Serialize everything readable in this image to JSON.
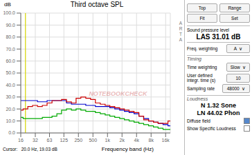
{
  "chart_data": {
    "type": "line",
    "title": "Third octave SPL",
    "x_label": "Frequency band (Hz)",
    "y_label": "dB",
    "log": "x",
    "line_style": "step",
    "grid": true,
    "xlim": [
      16,
      20000
    ],
    "ylim": [
      0.0,
      100.0
    ],
    "xticks": [
      16,
      32,
      63,
      125,
      250,
      500,
      {
        "value": 1000,
        "label": "1k"
      },
      {
        "value": 2000,
        "label": "2k"
      },
      {
        "value": 4000,
        "label": "4k"
      },
      {
        "value": 8000,
        "label": "8k"
      },
      {
        "value": 16000,
        "label": "16k"
      }
    ],
    "yticks": [
      {
        "value": 0,
        "label": "0.0"
      },
      {
        "value": 10,
        "label": "10.0"
      },
      {
        "value": 20,
        "label": "20.0"
      },
      {
        "value": 30,
        "label": "30.0"
      },
      {
        "value": 40,
        "label": "40.0"
      },
      {
        "value": 50,
        "label": "50.0"
      },
      {
        "value": 60,
        "label": "60.0"
      },
      {
        "value": 70,
        "label": "70.0"
      },
      {
        "value": 80,
        "label": "80.0"
      },
      {
        "value": 90,
        "label": "90.0"
      },
      {
        "value": 100,
        "label": "100.0"
      }
    ],
    "x": [
      16,
      20,
      25,
      31.5,
      40,
      50,
      63,
      80,
      100,
      125,
      160,
      200,
      250,
      315,
      400,
      500,
      630,
      800,
      1000,
      1250,
      1600,
      2000,
      2500,
      3150,
      4000,
      5000,
      6300,
      8000,
      10000,
      12500,
      16000,
      20000
    ],
    "series": [
      {
        "color": "#00aa00",
        "values": [
          13,
          12,
          12,
          12,
          12,
          13,
          13,
          14,
          16,
          19,
          20,
          19,
          20,
          19,
          18,
          18,
          17,
          16,
          15,
          14,
          13,
          12,
          11,
          10,
          9,
          8,
          7,
          6,
          5,
          4,
          3,
          3
        ]
      },
      {
        "color": "#0000cc",
        "values": [
          27,
          27,
          27,
          27,
          26,
          26,
          27,
          27,
          27,
          27,
          25,
          24,
          24,
          24,
          23,
          23,
          22,
          22,
          22,
          21,
          20,
          19,
          18,
          17,
          16,
          14,
          12,
          10,
          9,
          8,
          7,
          6
        ]
      },
      {
        "color": "#cc0000",
        "values": [
          19,
          20,
          22,
          23,
          22,
          23,
          25,
          27,
          27,
          28,
          26,
          25,
          29,
          30,
          29,
          28,
          25,
          24,
          23,
          22,
          21,
          20,
          19,
          18,
          17,
          14,
          11,
          10,
          9,
          8,
          8,
          10
        ]
      }
    ],
    "reference_lines": [
      {
        "x": 20,
        "color": "#d4d400"
      }
    ],
    "annotations": [
      {
        "text": "Top"
      },
      {
        "text": "Range"
      },
      {
        "text": "Fit"
      },
      {
        "text": "Set"
      },
      {
        "text": "Sound pressure level"
      },
      {
        "text": "LAS 31.01 dB"
      },
      {
        "text": "Freq. weighting"
      },
      {
        "text": "A  ∨"
      },
      {
        "text": "Timing"
      },
      {
        "text": "Time weighting"
      },
      {
        "text": "Slow  ∨"
      },
      {
        "text": "User defined\nintegr. time (s)"
      },
      {
        "text": "10"
      },
      {
        "text": "Sampling rate"
      },
      {
        "text": "48000  ∨"
      },
      {
        "text": "Loudness"
      },
      {
        "text": "N 1.32 Sone"
      },
      {
        "text": "LN 44.02 Phon"
      },
      {
        "text": "Diffuse field"
      },
      {
        "text": "Show Specific Loudness"
      },
      {
        "text": "Cursor:   20.0 Hz, 19.03 dB"
      },
      {
        "text": "A\nR\nT\nA"
      },
      {
        "text": "NOTEBOOKCHECK",
        "color": "#bb2222"
      }
    ]
  }
}
